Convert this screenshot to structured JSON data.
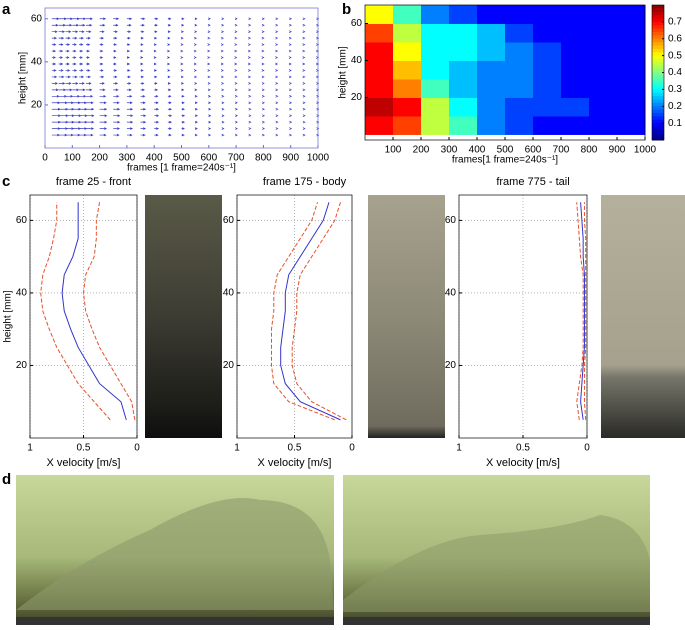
{
  "chart_data": [
    {
      "type": "quiver",
      "panel": "a",
      "xlabel": "frames [1 frame=240s⁻¹]",
      "ylabel": "height [mm]",
      "xlim": [
        0,
        1000
      ],
      "ylim": [
        0,
        65
      ],
      "xticks": [
        0,
        100,
        200,
        300,
        400,
        500,
        600,
        700,
        800,
        900,
        1000
      ],
      "yticks": [
        20,
        40,
        60
      ],
      "color": "#3b3bc8",
      "x": [
        25,
        50,
        75,
        100,
        125,
        150,
        200,
        250,
        300,
        350,
        400,
        450,
        500,
        550,
        600,
        650,
        700,
        750,
        800,
        850,
        900,
        950,
        1000
      ],
      "values": [
        0.6,
        0.65,
        0.6,
        0.6,
        0.55,
        0.55,
        0.5,
        0.45,
        0.4,
        0.35,
        0.3,
        0.25,
        0.2,
        0.15,
        0.12,
        0.1,
        0.08,
        0.07,
        0.06,
        0.05,
        0.05,
        0.04,
        0.04
      ]
    },
    {
      "type": "heatmap",
      "panel": "b",
      "xlabel": "frames[1 frame=240s⁻¹]",
      "ylabel": "height [mm]",
      "xlim": [
        0,
        1000
      ],
      "ylim": [
        -3,
        70
      ],
      "xticks": [
        100,
        200,
        300,
        400,
        500,
        600,
        700,
        800,
        900,
        1000
      ],
      "yticks": [
        20,
        40,
        60
      ],
      "clim": [
        0,
        0.8
      ],
      "cticks": [
        0.1,
        0.2,
        0.3,
        0.4,
        0.5,
        0.6,
        0.7
      ],
      "xbins": [
        0,
        100,
        200,
        300,
        400,
        500,
        600,
        700,
        800,
        900,
        1000
      ],
      "ybins": [
        0,
        10,
        20,
        30,
        40,
        50,
        60,
        70
      ],
      "z": [
        [
          0.7,
          0.65,
          0.45,
          0.35,
          0.2,
          0.15,
          0.1,
          0.1,
          0.1,
          0.1
        ],
        [
          0.75,
          0.7,
          0.45,
          0.3,
          0.2,
          0.15,
          0.15,
          0.15,
          0.1,
          0.1
        ],
        [
          0.7,
          0.6,
          0.35,
          0.25,
          0.2,
          0.2,
          0.15,
          0.1,
          0.1,
          0.1
        ],
        [
          0.7,
          0.55,
          0.3,
          0.25,
          0.2,
          0.2,
          0.15,
          0.1,
          0.1,
          0.1
        ],
        [
          0.7,
          0.5,
          0.3,
          0.3,
          0.25,
          0.2,
          0.15,
          0.1,
          0.1,
          0.1
        ],
        [
          0.65,
          0.45,
          0.3,
          0.3,
          0.25,
          0.15,
          0.1,
          0.1,
          0.1,
          0.1
        ],
        [
          0.5,
          0.35,
          0.2,
          0.15,
          0.1,
          0.1,
          0.1,
          0.1,
          0.1,
          0.1
        ]
      ]
    },
    {
      "type": "profile",
      "panel": "c",
      "title": "frame 25 - front",
      "xlabel": "X velocity [m/s]",
      "ylabel": "height [mm]",
      "xlim": [
        1,
        0
      ],
      "ylim": [
        0,
        67
      ],
      "xticks": [
        1,
        0.5,
        0
      ],
      "yticks": [
        20,
        40,
        60
      ],
      "grid": true,
      "y": [
        5,
        10,
        15,
        20,
        25,
        30,
        35,
        40,
        45,
        50,
        55,
        60,
        65
      ],
      "series": [
        {
          "color": "#3333cc",
          "dash": false,
          "values": [
            0.1,
            0.15,
            0.35,
            0.45,
            0.55,
            0.62,
            0.68,
            0.7,
            0.68,
            0.6,
            0.55,
            0.55,
            0.55
          ]
        },
        {
          "color": "#e8502a",
          "dash": true,
          "values": [
            0.25,
            0.4,
            0.55,
            0.65,
            0.75,
            0.82,
            0.88,
            0.9,
            0.88,
            0.82,
            0.78,
            0.75,
            0.75
          ]
        },
        {
          "color": "#e8502a",
          "dash": true,
          "values": [
            0.02,
            0.05,
            0.15,
            0.25,
            0.35,
            0.42,
            0.48,
            0.5,
            0.48,
            0.4,
            0.38,
            0.38,
            0.35
          ]
        }
      ]
    },
    {
      "type": "profile",
      "title": "frame 175 - body",
      "xlabel": "X velocity [m/s]",
      "xlim": [
        1,
        0
      ],
      "ylim": [
        0,
        67
      ],
      "xticks": [
        1,
        0.5,
        0
      ],
      "yticks": [
        20,
        40,
        60
      ],
      "grid": true,
      "y": [
        5,
        10,
        15,
        20,
        25,
        30,
        35,
        40,
        45,
        50,
        55,
        60,
        65
      ],
      "series": [
        {
          "color": "#3333cc",
          "dash": false,
          "values": [
            0.1,
            0.45,
            0.58,
            0.62,
            0.62,
            0.6,
            0.58,
            0.58,
            0.55,
            0.45,
            0.35,
            0.25,
            0.2
          ]
        },
        {
          "color": "#e8502a",
          "dash": true,
          "values": [
            0.15,
            0.55,
            0.68,
            0.7,
            0.7,
            0.7,
            0.68,
            0.68,
            0.65,
            0.55,
            0.45,
            0.35,
            0.3
          ]
        },
        {
          "color": "#e8502a",
          "dash": true,
          "values": [
            0.05,
            0.35,
            0.48,
            0.52,
            0.52,
            0.5,
            0.48,
            0.48,
            0.45,
            0.35,
            0.25,
            0.15,
            0.1
          ]
        }
      ]
    },
    {
      "type": "profile",
      "title": "frame 775 - tail",
      "xlabel": "X velocity [m/s]",
      "xlim": [
        1,
        0
      ],
      "ylim": [
        0,
        67
      ],
      "xticks": [
        1,
        0.5,
        0
      ],
      "yticks": [
        20,
        40,
        60
      ],
      "grid": true,
      "y": [
        5,
        10,
        15,
        20,
        25,
        30,
        35,
        40,
        45,
        50,
        55,
        60,
        65
      ],
      "series": [
        {
          "color": "#3333cc",
          "dash": false,
          "values": [
            0.03,
            0.05,
            0.04,
            0.03,
            0.02,
            0.02,
            0.02,
            0.02,
            0.02,
            0.03,
            0.03,
            0.04,
            0.05
          ]
        },
        {
          "color": "#e8502a",
          "dash": true,
          "values": [
            0.06,
            0.08,
            0.06,
            0.04,
            0.03,
            0.03,
            0.03,
            0.03,
            0.03,
            0.05,
            0.06,
            0.07,
            0.08
          ]
        },
        {
          "color": "#e8502a",
          "dash": true,
          "values": [
            0.01,
            0.02,
            0.02,
            0.02,
            0.01,
            0.01,
            0.01,
            0.01,
            0.01,
            0.01,
            0.01,
            0.02,
            0.02
          ]
        }
      ]
    }
  ],
  "photo_panel": {
    "label": "d"
  }
}
